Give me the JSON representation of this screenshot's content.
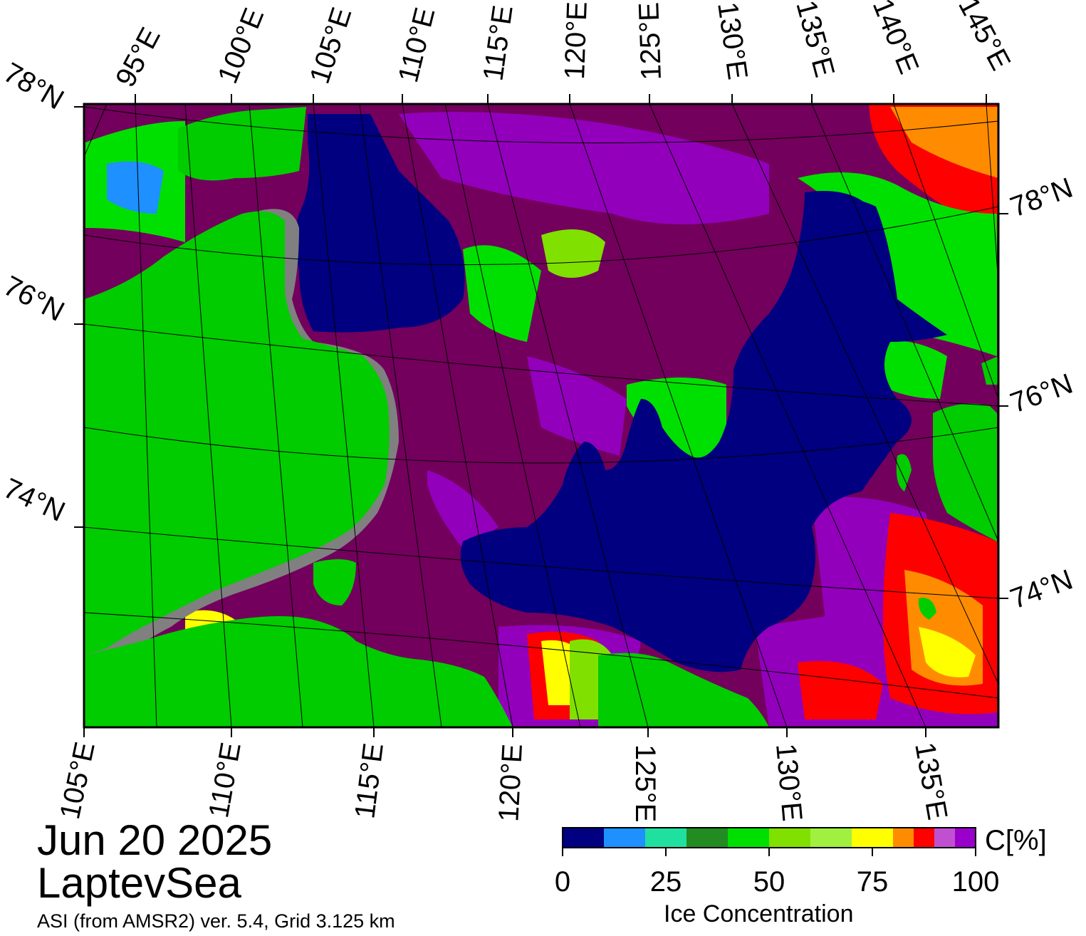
{
  "map": {
    "date": "Jun 20 2025",
    "region": "LaptevSea",
    "source": "ASI (from AMSR2) ver. 5.4,  Grid 3.125 km",
    "colors": {
      "land": "#00cc00",
      "coast_gray": "#808080",
      "open_water": "#000080",
      "dense_ice": "#73005c"
    },
    "top_lon_labels": [
      "95°E",
      "100°E",
      "105°E",
      "110°E",
      "115°E",
      "120°E",
      "125°E",
      "130°E",
      "135°E",
      "140°E",
      "145°E"
    ],
    "bottom_lon_labels": [
      "105°E",
      "110°E",
      "115°E",
      "120°E",
      "125°E",
      "130°E",
      "135°E"
    ],
    "left_lat_labels": [
      "78°N",
      "76°N",
      "74°N"
    ],
    "right_lat_labels": [
      "78°N",
      "76°N",
      "74°N"
    ]
  },
  "colorbar": {
    "title": "Ice Concentration",
    "unit": "C[%]",
    "ticks": [
      "0",
      "25",
      "50",
      "75",
      "100"
    ],
    "bins": [
      {
        "from": 0,
        "to": 10,
        "color": "#000080"
      },
      {
        "from": 10,
        "to": 20,
        "color": "#1e90ff"
      },
      {
        "from": 20,
        "to": 30,
        "color": "#20e0a0"
      },
      {
        "from": 30,
        "to": 40,
        "color": "#228b22"
      },
      {
        "from": 40,
        "to": 50,
        "color": "#00e000"
      },
      {
        "from": 50,
        "to": 60,
        "color": "#80e000"
      },
      {
        "from": 60,
        "to": 70,
        "color": "#a0f040"
      },
      {
        "from": 70,
        "to": 80,
        "color": "#ffff00"
      },
      {
        "from": 80,
        "to": 85,
        "color": "#ff8c00"
      },
      {
        "from": 85,
        "to": 90,
        "color": "#ff0000"
      },
      {
        "from": 90,
        "to": 95,
        "color": "#c050d0"
      },
      {
        "from": 95,
        "to": 100,
        "color": "#9900cc"
      }
    ]
  }
}
